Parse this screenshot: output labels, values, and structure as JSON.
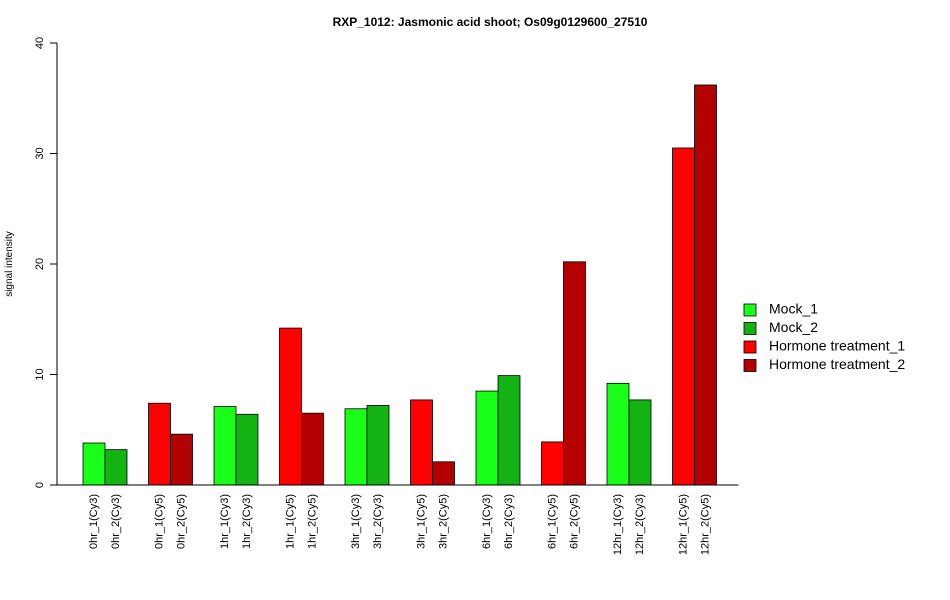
{
  "chart_data": {
    "type": "bar",
    "title": "RXP_1012: Jasmonic acid shoot; Os09g0129600_27510",
    "ylabel": "signal intensity",
    "xlabel": "",
    "ylim": [
      0,
      40
    ],
    "yticks": [
      0,
      10,
      20,
      30,
      40
    ],
    "grid": false,
    "legend_position": "right",
    "legend": [
      {
        "name": "Mock_1",
        "color": "#1aff1a"
      },
      {
        "name": "Mock_2",
        "color": "#12b312"
      },
      {
        "name": "Hormone treatment_1",
        "color": "#ff0000"
      },
      {
        "name": "Hormone treatment_2",
        "color": "#b30000"
      }
    ],
    "bars": [
      {
        "label": "0hr_1(Cy3)",
        "value": 3.8,
        "color": "#1aff1a"
      },
      {
        "label": "0hr_2(Cy3)",
        "value": 3.2,
        "color": "#12b312"
      },
      {
        "label": "0hr_1(Cy5)",
        "value": 7.4,
        "color": "#ff0000"
      },
      {
        "label": "0hr_2(Cy5)",
        "value": 4.6,
        "color": "#b30000"
      },
      {
        "label": "1hr_1(Cy3)",
        "value": 7.1,
        "color": "#1aff1a"
      },
      {
        "label": "1hr_2(Cy3)",
        "value": 6.4,
        "color": "#12b312"
      },
      {
        "label": "1hr_1(Cy5)",
        "value": 14.2,
        "color": "#ff0000"
      },
      {
        "label": "1hr_2(Cy5)",
        "value": 6.5,
        "color": "#b30000"
      },
      {
        "label": "3hr_1(Cy3)",
        "value": 6.9,
        "color": "#1aff1a"
      },
      {
        "label": "3hr_2(Cy3)",
        "value": 7.2,
        "color": "#12b312"
      },
      {
        "label": "3hr_1(Cy5)",
        "value": 7.7,
        "color": "#ff0000"
      },
      {
        "label": "3hr_2(Cy5)",
        "value": 2.1,
        "color": "#b30000"
      },
      {
        "label": "6hr_1(Cy3)",
        "value": 8.5,
        "color": "#1aff1a"
      },
      {
        "label": "6hr_2(Cy3)",
        "value": 9.9,
        "color": "#12b312"
      },
      {
        "label": "6hr_1(Cy5)",
        "value": 3.9,
        "color": "#ff0000"
      },
      {
        "label": "6hr_2(Cy5)",
        "value": 20.2,
        "color": "#b30000"
      },
      {
        "label": "12hr_1(Cy3)",
        "value": 9.2,
        "color": "#1aff1a"
      },
      {
        "label": "12hr_2(Cy3)",
        "value": 7.7,
        "color": "#12b312"
      },
      {
        "label": "12hr_1(Cy5)",
        "value": 30.5,
        "color": "#ff0000"
      },
      {
        "label": "12hr_2(Cy5)",
        "value": 36.2,
        "color": "#b30000"
      }
    ]
  }
}
